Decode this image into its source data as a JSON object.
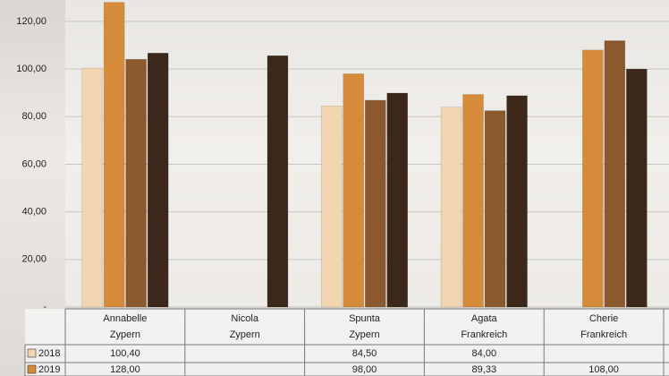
{
  "chart_data": {
    "type": "bar",
    "categories": [
      [
        "Annabelle",
        "Zypern"
      ],
      [
        "Nicola",
        "Zypern"
      ],
      [
        "Spunta",
        "Zypern"
      ],
      [
        "Agata",
        "Frankreich"
      ],
      [
        "Cherie",
        "Frankreich"
      ]
    ],
    "series": [
      {
        "name": "2018",
        "color": "#f1d4b0",
        "values": [
          100.4,
          null,
          84.5,
          84.0,
          null
        ],
        "value_labels": [
          "100,40",
          null,
          "84,50",
          "84,00",
          null
        ]
      },
      {
        "name": "2019",
        "color": "#d58b3a",
        "values": [
          128.0,
          null,
          98.0,
          89.33,
          108.0
        ],
        "value_labels": [
          "128,00",
          null,
          "98,00",
          "89,33",
          "108,00"
        ]
      },
      {
        "color": "#8a5a2e",
        "values": [
          104.1,
          null,
          86.9,
          82.5,
          111.9
        ]
      },
      {
        "color": "#3b281a",
        "values": [
          106.7,
          105.6,
          89.9,
          88.8,
          100.0
        ]
      }
    ],
    "ylim": [
      0,
      129
    ],
    "yticks": [
      {
        "value": 0,
        "label": "-"
      },
      {
        "value": 20,
        "label": "20,00"
      },
      {
        "value": 40,
        "label": "40,00"
      },
      {
        "value": 60,
        "label": "60,00"
      },
      {
        "value": 80,
        "label": "80,00"
      },
      {
        "value": 100,
        "label": "100,00"
      },
      {
        "value": 120,
        "label": "120,00"
      }
    ],
    "grid": true
  }
}
